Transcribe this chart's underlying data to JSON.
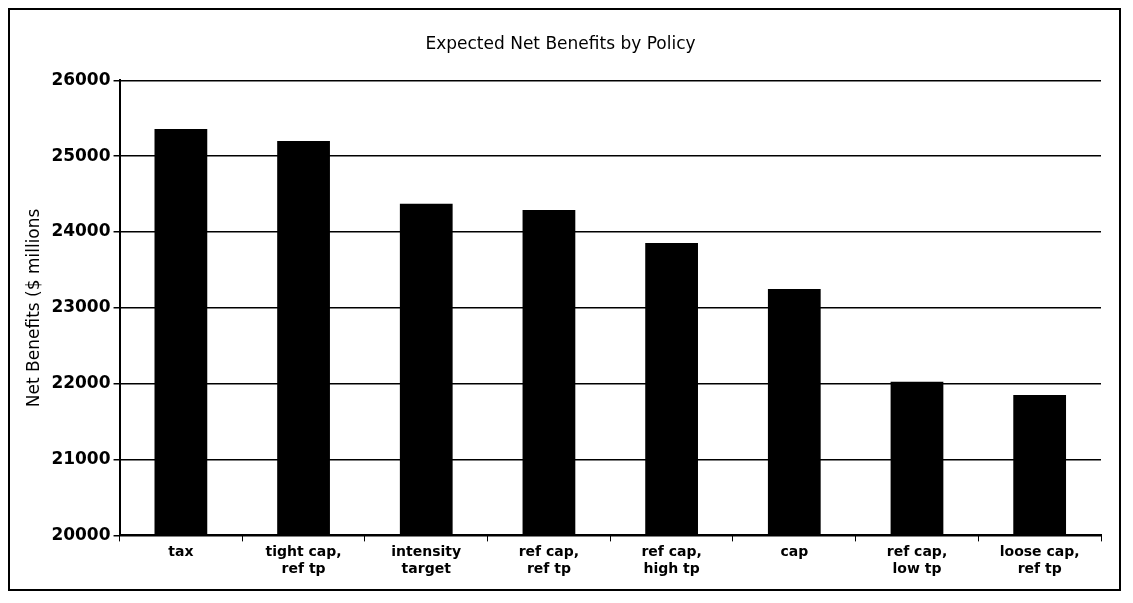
{
  "chart_data": {
    "type": "bar",
    "title": "Expected Net Benefits by Policy",
    "ylabel": "Net Benefits ($ millions",
    "categories": [
      "tax",
      "tight cap, ref tp",
      "intensity target",
      "ref cap, ref tp",
      "ref cap, high tp",
      "cap",
      "ref cap, low tp",
      "loose cap, ref tp"
    ],
    "values": [
      25360,
      25200,
      24375,
      24290,
      23855,
      23250,
      22025,
      21850
    ],
    "color": "#000000",
    "ylim": [
      20000,
      26000
    ],
    "yticks": [
      20000,
      21000,
      22000,
      23000,
      24000,
      25000,
      26000
    ],
    "grid": "y",
    "legend": false
  }
}
